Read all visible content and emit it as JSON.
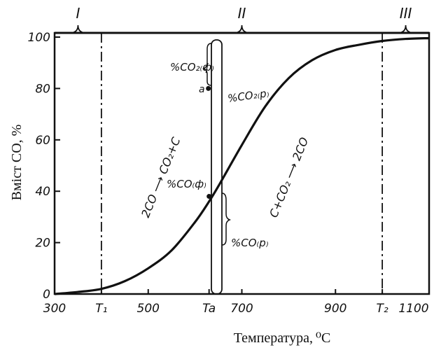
{
  "chart_data": {
    "type": "line",
    "xlabel": "Температура,",
    "xlabel_unit": "⁰C",
    "ylabel": "Вміст CO, %",
    "xlim": [
      300,
      1100
    ],
    "ylim": [
      0,
      100
    ],
    "x_ticks": [
      {
        "value": 300,
        "label": "300"
      },
      {
        "value": 400,
        "label": "T₁"
      },
      {
        "value": 500,
        "label": "500"
      },
      {
        "value": 630,
        "label": "Ta"
      },
      {
        "value": 700,
        "label": "700"
      },
      {
        "value": 900,
        "label": "900"
      },
      {
        "value": 1000,
        "label": "T₂"
      },
      {
        "value": 1100,
        "label": "1100"
      }
    ],
    "y_ticks": [
      0,
      20,
      40,
      60,
      80,
      100
    ],
    "vertical_lines": [
      {
        "x": 400,
        "label": "T₁"
      },
      {
        "x": 1000,
        "label": "T₂"
      }
    ],
    "regions": [
      {
        "label": "I",
        "from": 300,
        "to": 400
      },
      {
        "label": "II",
        "from": 400,
        "to": 1000
      },
      {
        "label": "III",
        "from": 1000,
        "to": 1100
      }
    ],
    "series": [
      {
        "x": [
          300,
          350,
          400,
          450,
          500,
          550,
          600,
          630,
          650,
          700,
          750,
          800,
          850,
          900,
          950,
          1000,
          1050,
          1100
        ],
        "y": [
          0,
          0.8,
          2,
          5,
          10,
          17,
          28,
          36,
          42,
          58,
          73,
          84,
          91,
          95,
          97,
          98.5,
          99.3,
          99.6
        ]
      }
    ],
    "annotations": {
      "co2_f": "%CO₂₍ф₎",
      "point_a": "a",
      "co2_p": "%CO₂₍р₎",
      "co_f": "%CO₍ф₎",
      "co_p": "%CO₍р₎",
      "reaction_left": "2CO ⟶ CO₂+C",
      "reaction_right": "C+CO₂ ⟶ 2CO"
    },
    "grid": false
  }
}
